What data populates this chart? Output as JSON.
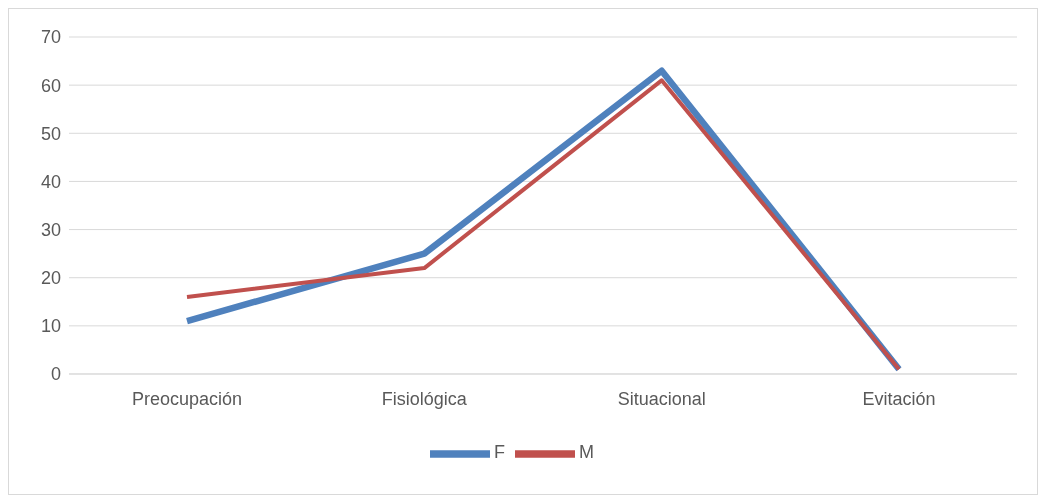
{
  "chart_data": {
    "type": "line",
    "categories": [
      "Preocupación",
      "Fisiológica",
      "Situacional",
      "Evitación"
    ],
    "series": [
      {
        "name": "F",
        "color": "#4f81bd",
        "values": [
          11,
          25,
          63,
          1
        ]
      },
      {
        "name": "M",
        "color": "#c0504d",
        "values": [
          16,
          22,
          61,
          1
        ]
      }
    ],
    "ylim": [
      0,
      70
    ],
    "yticks": [
      0,
      10,
      20,
      30,
      40,
      50,
      60,
      70
    ],
    "grid": "y",
    "legend": "bottom",
    "marker": "none",
    "line_style": "solid"
  }
}
